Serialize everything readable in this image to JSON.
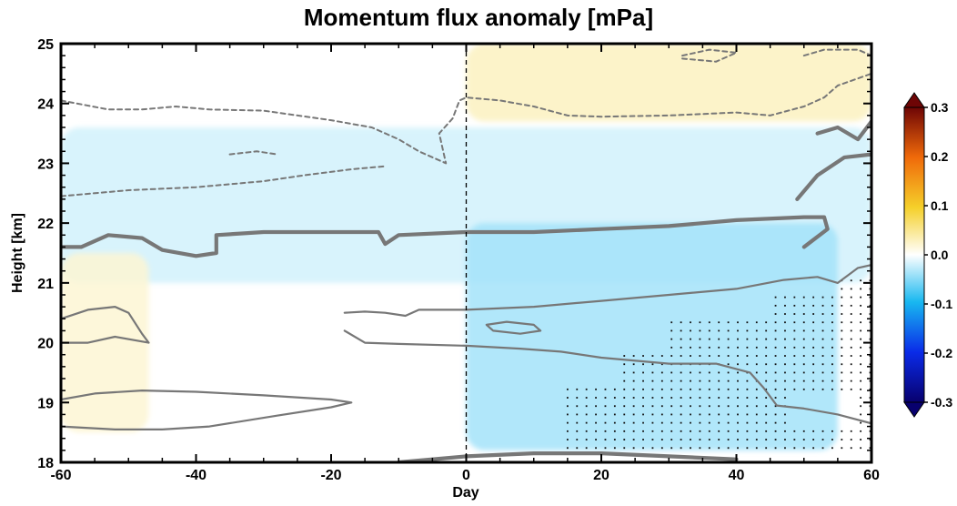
{
  "chart_data": {
    "type": "heatmap",
    "title": "Momentum flux anomaly [mPa]",
    "xlabel": "Day",
    "ylabel": "Height [km]",
    "xlim": [
      -60,
      60
    ],
    "ylim": [
      18,
      25
    ],
    "x_ticks": [
      -60,
      -40,
      -20,
      0,
      20,
      40,
      60
    ],
    "y_ticks": [
      18,
      19,
      20,
      21,
      22,
      23,
      24,
      25
    ],
    "colorbar": {
      "min": -0.3,
      "max": 0.3,
      "ticks": [
        0.3,
        0.2,
        0.1,
        0.0,
        -0.1,
        -0.2,
        -0.3
      ],
      "tick_labels": [
        "0.3",
        "0.2",
        "0.1",
        "0.0",
        "-0.1",
        "-0.2",
        "-0.3"
      ],
      "colors": [
        "#08006e",
        "#0a2be8",
        "#18b8f0",
        "#ffffff",
        "#f5d02a",
        "#f06a0a",
        "#6e0505"
      ]
    },
    "reference_line_x": 0,
    "anomaly_regions": [
      {
        "sign": "positive",
        "x_range": [
          -60,
          60
        ],
        "y_range": [
          21.0,
          23.6
        ],
        "value": 0.02
      },
      {
        "sign": "positive",
        "x_range": [
          0,
          55
        ],
        "y_range": [
          18.2,
          22.0
        ],
        "value": 0.04
      },
      {
        "sign": "negative",
        "x_range": [
          0,
          60
        ],
        "y_range": [
          23.7,
          25.0
        ],
        "value": -0.03
      },
      {
        "sign": "negative",
        "x_range": [
          -60,
          -47
        ],
        "y_range": [
          18.5,
          21.5
        ],
        "value": -0.02
      }
    ],
    "contours": [
      {
        "style": "thick-solid",
        "points": [
          [
            -60,
            21.6
          ],
          [
            -57,
            21.6
          ],
          [
            -53,
            21.8
          ],
          [
            -48,
            21.75
          ],
          [
            -45,
            21.55
          ],
          [
            -40,
            21.45
          ],
          [
            -37,
            21.5
          ],
          [
            -37,
            21.8
          ],
          [
            -30,
            21.85
          ],
          [
            -20,
            21.85
          ],
          [
            -13,
            21.85
          ],
          [
            -12,
            21.65
          ],
          [
            -10,
            21.8
          ],
          [
            0,
            21.85
          ],
          [
            10,
            21.85
          ],
          [
            20,
            21.9
          ],
          [
            30,
            21.95
          ],
          [
            40,
            22.05
          ],
          [
            50,
            22.1
          ],
          [
            53,
            22.1
          ],
          [
            53.5,
            21.9
          ],
          [
            50,
            21.6
          ]
        ]
      },
      {
        "style": "thick-solid",
        "points": [
          [
            49,
            22.4
          ],
          [
            52,
            22.8
          ],
          [
            56,
            23.1
          ],
          [
            60,
            23.15
          ]
        ]
      },
      {
        "style": "thick-solid",
        "points": [
          [
            52,
            23.5
          ],
          [
            55,
            23.6
          ],
          [
            58,
            23.4
          ],
          [
            60,
            23.7
          ]
        ]
      },
      {
        "style": "thick-solid",
        "points": [
          [
            -10,
            18.0
          ],
          [
            0,
            18.1
          ],
          [
            10,
            18.15
          ],
          [
            20,
            18.15
          ],
          [
            30,
            18.1
          ],
          [
            40,
            18.05
          ]
        ]
      },
      {
        "style": "thin-solid",
        "points": [
          [
            -60,
            19.05
          ],
          [
            -55,
            19.15
          ],
          [
            -48,
            19.2
          ],
          [
            -40,
            19.18
          ],
          [
            -30,
            19.12
          ],
          [
            -20,
            19.05
          ],
          [
            -17,
            19.0
          ],
          [
            -20,
            18.92
          ],
          [
            -28,
            18.78
          ],
          [
            -38,
            18.6
          ],
          [
            -45,
            18.55
          ],
          [
            -52,
            18.55
          ],
          [
            -60,
            18.6
          ]
        ]
      },
      {
        "style": "thin-solid",
        "points": [
          [
            -60,
            20.4
          ],
          [
            -56,
            20.55
          ],
          [
            -52,
            20.6
          ],
          [
            -50,
            20.5
          ],
          [
            -48,
            20.15
          ],
          [
            -47,
            20.0
          ],
          [
            -52,
            20.1
          ],
          [
            -56,
            20.0
          ],
          [
            -60,
            20.0
          ]
        ]
      },
      {
        "style": "thin-solid",
        "points": [
          [
            -18,
            20.5
          ],
          [
            -15,
            20.52
          ],
          [
            -12,
            20.5
          ],
          [
            -9,
            20.45
          ],
          [
            -7,
            20.55
          ],
          [
            0,
            20.55
          ],
          [
            10,
            20.6
          ],
          [
            20,
            20.7
          ],
          [
            30,
            20.8
          ],
          [
            40,
            20.9
          ],
          [
            47,
            21.05
          ],
          [
            52,
            21.1
          ],
          [
            55,
            21.0
          ],
          [
            58,
            21.25
          ],
          [
            60,
            21.3
          ]
        ]
      },
      {
        "style": "thin-solid",
        "points": [
          [
            -18,
            20.2
          ],
          [
            -15,
            20.0
          ],
          [
            -10,
            19.98
          ],
          [
            0,
            19.95
          ],
          [
            8,
            19.9
          ],
          [
            14,
            19.85
          ],
          [
            20,
            19.75
          ],
          [
            30,
            19.65
          ],
          [
            37,
            19.65
          ],
          [
            42,
            19.5
          ],
          [
            44,
            19.25
          ],
          [
            46,
            18.95
          ],
          [
            50,
            18.9
          ],
          [
            55,
            18.8
          ],
          [
            60,
            18.65
          ]
        ]
      },
      {
        "style": "thin-solid",
        "points": [
          [
            3,
            20.3
          ],
          [
            6,
            20.35
          ],
          [
            10,
            20.3
          ],
          [
            11,
            20.2
          ],
          [
            8,
            20.15
          ],
          [
            4,
            20.2
          ],
          [
            3,
            20.3
          ]
        ]
      },
      {
        "style": "dashed",
        "points": [
          [
            -60,
            24.05
          ],
          [
            -53,
            23.9
          ],
          [
            -48,
            23.9
          ],
          [
            -43,
            23.95
          ],
          [
            -38,
            23.9
          ],
          [
            -30,
            23.88
          ],
          [
            -20,
            23.72
          ],
          [
            -14,
            23.6
          ],
          [
            -10,
            23.4
          ],
          [
            -7,
            23.2
          ],
          [
            -3,
            23.0
          ],
          [
            -4,
            23.5
          ],
          [
            -2,
            23.75
          ],
          [
            -1,
            24.05
          ],
          [
            0,
            24.1
          ],
          [
            5,
            24.05
          ],
          [
            10,
            23.95
          ],
          [
            15,
            23.8
          ],
          [
            20,
            23.78
          ],
          [
            30,
            23.8
          ],
          [
            40,
            23.85
          ],
          [
            45,
            23.8
          ],
          [
            50,
            23.95
          ],
          [
            53,
            24.1
          ],
          [
            55,
            24.3
          ],
          [
            60,
            24.5
          ]
        ]
      },
      {
        "style": "dashed",
        "points": [
          [
            -60,
            22.45
          ],
          [
            -50,
            22.55
          ],
          [
            -40,
            22.6
          ],
          [
            -30,
            22.7
          ],
          [
            -24,
            22.8
          ],
          [
            -17,
            22.9
          ],
          [
            -12,
            22.95
          ]
        ]
      },
      {
        "style": "dashed",
        "points": [
          [
            -35,
            23.15
          ],
          [
            -31,
            23.2
          ],
          [
            -28,
            23.15
          ]
        ]
      },
      {
        "style": "dashed",
        "points": [
          [
            32,
            24.8
          ],
          [
            36,
            24.9
          ],
          [
            40,
            24.85
          ],
          [
            37,
            24.7
          ],
          [
            32,
            24.75
          ],
          [
            32,
            24.8
          ]
        ]
      },
      {
        "style": "dashed",
        "points": [
          [
            50,
            24.8
          ],
          [
            53,
            24.9
          ],
          [
            58,
            24.9
          ],
          [
            60,
            24.8
          ]
        ]
      }
    ],
    "significance_region": {
      "note": "stippled points mark significant anomalies",
      "x_range": [
        15,
        60
      ],
      "y_range": [
        18,
        21.2
      ]
    }
  }
}
